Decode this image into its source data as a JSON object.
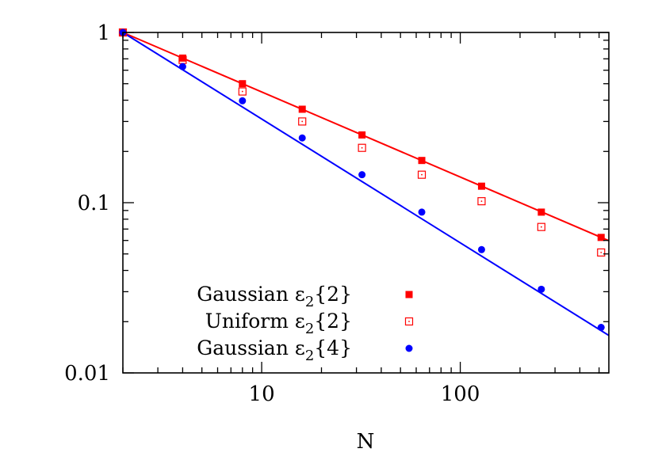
{
  "chart_data": {
    "type": "scatter",
    "title": "",
    "xlabel": "N",
    "ylabel": "",
    "xscale": "log",
    "yscale": "log",
    "xlim": [
      2,
      560
    ],
    "ylim": [
      0.01,
      1
    ],
    "grid": false,
    "legend_position": "bottom-left",
    "x_tick_labels": [
      {
        "value": 10,
        "label": "10"
      },
      {
        "value": 100,
        "label": "100"
      }
    ],
    "y_tick_labels": [
      {
        "value": 1,
        "label": "1"
      },
      {
        "value": 0.1,
        "label": "0.1"
      },
      {
        "value": 0.01,
        "label": "0.01"
      }
    ],
    "series": [
      {
        "name": "Gaussian ε₂{2}",
        "legend_main": "Gaussian ε",
        "legend_sub": "2",
        "legend_tail": "{2}",
        "marker": "filled-square",
        "color": "#ff0000",
        "x": [
          2,
          4,
          8,
          16,
          32,
          64,
          128,
          256,
          512
        ],
        "y": [
          1.0,
          0.707,
          0.5,
          0.354,
          0.25,
          0.177,
          0.125,
          0.088,
          0.0625
        ]
      },
      {
        "name": "Uniform ε₂{2}",
        "legend_main": "Uniform ε",
        "legend_sub": "2",
        "legend_tail": "{2}",
        "marker": "open-square",
        "color": "#ff0000",
        "x": [
          2,
          4,
          8,
          16,
          32,
          64,
          128,
          256,
          512
        ],
        "y": [
          1.0,
          0.69,
          0.45,
          0.3,
          0.21,
          0.146,
          0.102,
          0.072,
          0.051
        ]
      },
      {
        "name": "Gaussian ε₂{4}",
        "legend_main": "Gaussian ε",
        "legend_sub": "2",
        "legend_tail": "{4}",
        "marker": "filled-circle",
        "color": "#0000ff",
        "x": [
          2,
          4,
          8,
          16,
          32,
          64,
          128,
          256,
          512
        ],
        "y": [
          1.0,
          0.63,
          0.397,
          0.24,
          0.146,
          0.088,
          0.053,
          0.031,
          0.0185
        ]
      }
    ],
    "fit_lines": [
      {
        "color": "#ff0000",
        "x": [
          2,
          560
        ],
        "y": [
          1.0,
          0.0598
        ]
      },
      {
        "color": "#0000ff",
        "x": [
          2,
          560
        ],
        "y": [
          1.0,
          0.0166
        ]
      }
    ]
  }
}
